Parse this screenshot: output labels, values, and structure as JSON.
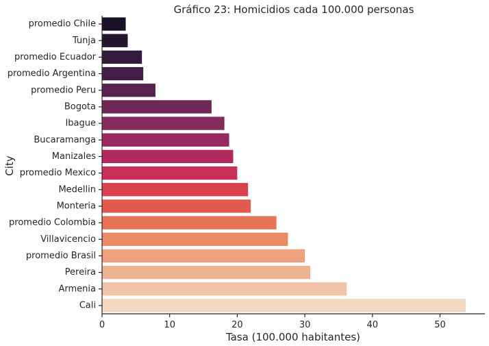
{
  "chart_data": {
    "type": "bar",
    "orientation": "horizontal",
    "title": "Gráfico 23: Homicidios cada 100.000 personas",
    "xlabel": "Tasa (100.000 habitantes)",
    "ylabel": "City",
    "xlim": [
      0,
      55
    ],
    "xticks": [
      0,
      10,
      20,
      30,
      40,
      50
    ],
    "grid": false,
    "palette": "rocket",
    "categories": [
      "promedio Chile",
      "Tunja",
      "promedio Ecuador",
      "promedio Argentina",
      "promedio Peru",
      "Bogota",
      "Ibague",
      "Bucaramanga",
      "Manizales",
      "promedio Mexico",
      "Medellin",
      "Monteria",
      "promedio Colombia",
      "Villavicencio",
      "promedio Brasil",
      "Pereira",
      "Armenia",
      "Cali"
    ],
    "values": [
      3.5,
      3.8,
      5.9,
      6.1,
      7.9,
      16.2,
      18.1,
      18.8,
      19.4,
      20.0,
      21.6,
      22.0,
      25.8,
      27.5,
      30.0,
      30.8,
      36.2,
      53.8
    ],
    "colors": [
      "#1a1028",
      "#25152f",
      "#341b3b",
      "#411d47",
      "#57224f",
      "#6e2856",
      "#842b5c",
      "#982860",
      "#b02a5c",
      "#c72f55",
      "#d9414c",
      "#e25a4c",
      "#e77356",
      "#ea8966",
      "#eea27b",
      "#edb28f",
      "#efc4a7",
      "#f3d9c2"
    ]
  }
}
